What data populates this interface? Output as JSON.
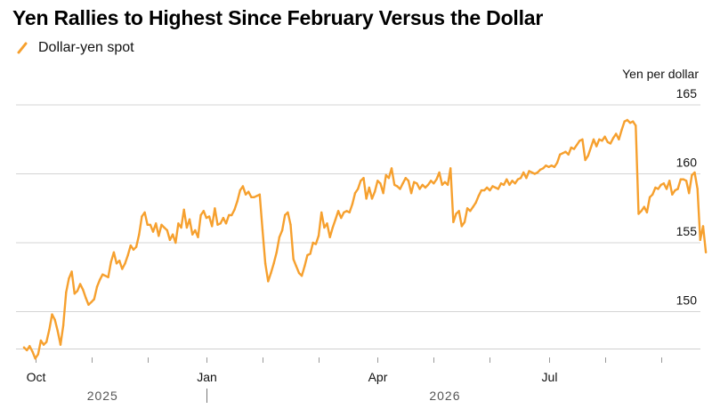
{
  "chart_data": {
    "type": "line",
    "title": "Yen Rallies to Highest Since February Versus the Dollar",
    "ylabel": "Yen per dollar",
    "ylim": [
      145.5,
      167
    ],
    "yticks": [
      150,
      155,
      160,
      165
    ],
    "grid": true,
    "legend_position": "top-left",
    "month_ticks": [
      {
        "label": "Oct",
        "i": 4
      },
      {
        "label": "",
        "i": 24
      },
      {
        "label": "",
        "i": 44
      },
      {
        "label": "Jan",
        "i": 65
      },
      {
        "label": "",
        "i": 85
      },
      {
        "label": "",
        "i": 105
      },
      {
        "label": "Apr",
        "i": 126
      },
      {
        "label": "",
        "i": 146
      },
      {
        "label": "",
        "i": 166
      },
      {
        "label": "Jul",
        "i": 187
      },
      {
        "label": "",
        "i": 207
      },
      {
        "label": "",
        "i": 227
      }
    ],
    "year_labels": [
      {
        "label": "2025",
        "i": 28
      },
      {
        "label": "2026",
        "i": 150
      }
    ],
    "year_divider_i": 65,
    "n_points": 230,
    "series": [
      {
        "name": "Dollar-yen spot",
        "color": "#f6a02e",
        "values": [
          147.4,
          147.2,
          147.5,
          147.1,
          146.6,
          146.9,
          147.9,
          147.6,
          147.8,
          148.7,
          149.8,
          149.4,
          148.6,
          147.6,
          149.0,
          151.4,
          152.4,
          152.9,
          151.3,
          151.5,
          152.0,
          151.6,
          151.0,
          150.5,
          150.7,
          150.9,
          151.8,
          152.3,
          152.7,
          152.6,
          152.5,
          153.6,
          154.3,
          153.5,
          153.7,
          153.1,
          153.5,
          154.1,
          154.8,
          154.5,
          154.7,
          155.6,
          156.9,
          157.2,
          156.3,
          156.3,
          155.8,
          156.4,
          155.5,
          156.3,
          156.1,
          155.9,
          155.2,
          155.6,
          155.0,
          156.4,
          156.1,
          157.4,
          156.1,
          156.7,
          155.6,
          155.9,
          155.4,
          157.0,
          157.3,
          156.8,
          156.9,
          156.2,
          157.5,
          156.3,
          156.4,
          156.8,
          156.4,
          157.0,
          157.0,
          157.4,
          158.0,
          158.8,
          159.1,
          158.5,
          158.7,
          158.3,
          158.3,
          158.4,
          158.5,
          155.9,
          153.5,
          152.2,
          152.8,
          153.5,
          154.3,
          155.4,
          155.9,
          157.0,
          157.2,
          156.3,
          153.8,
          153.3,
          152.8,
          152.6,
          153.3,
          154.1,
          154.2,
          155.0,
          154.9,
          155.5,
          157.2,
          156.1,
          156.4,
          155.4,
          156.1,
          156.7,
          157.3,
          156.8,
          157.2,
          157.3,
          157.2,
          157.8,
          158.6,
          158.9,
          159.5,
          159.7,
          158.2,
          159.0,
          158.2,
          158.7,
          159.5,
          159.3,
          158.6,
          159.9,
          159.7,
          160.4,
          159.2,
          159.1,
          158.9,
          159.3,
          159.7,
          159.5,
          158.6,
          159.4,
          159.3,
          158.9,
          159.2,
          159.0,
          159.2,
          159.5,
          159.3,
          159.6,
          160.1,
          159.2,
          159.4,
          159.2,
          160.4,
          156.5,
          157.1,
          157.3,
          156.2,
          156.5,
          157.5,
          157.3,
          157.6,
          157.9,
          158.4,
          158.8,
          158.8,
          159.0,
          158.8,
          159.1,
          159.0,
          158.9,
          159.3,
          159.2,
          159.6,
          159.2,
          159.5,
          159.3,
          159.6,
          159.7,
          160.1,
          159.7,
          160.2,
          160.1,
          160.0,
          160.1,
          160.3,
          160.4,
          160.6,
          160.5,
          160.6,
          160.5,
          160.8,
          161.4,
          161.5,
          161.6,
          161.4,
          161.9,
          161.8,
          162.1,
          162.4,
          162.5,
          161.0,
          161.3,
          161.9,
          162.5,
          162.0,
          162.5,
          162.4,
          162.7,
          162.3,
          162.2,
          162.6,
          162.9,
          162.5,
          163.2,
          163.8,
          163.9,
          163.7,
          163.8,
          163.5,
          157.1,
          157.3,
          157.6,
          157.2,
          158.3,
          158.5,
          159.0,
          158.9,
          159.2,
          159.3,
          158.9,
          159.5,
          158.5,
          158.8,
          158.9,
          159.6,
          159.6,
          159.5,
          158.6,
          159.9,
          160.1,
          158.9,
          155.2,
          156.2,
          154.3
        ]
      }
    ]
  }
}
